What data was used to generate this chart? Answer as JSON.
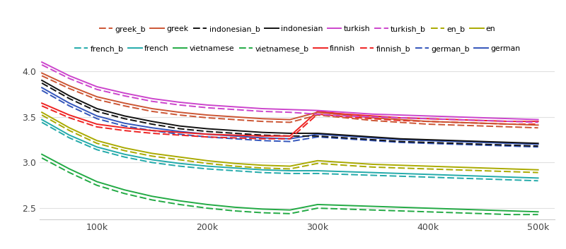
{
  "x": [
    50000,
    75000,
    100000,
    125000,
    150000,
    175000,
    200000,
    225000,
    250000,
    275000,
    300000,
    325000,
    350000,
    375000,
    400000,
    425000,
    450000,
    475000,
    500000
  ],
  "languages": {
    "turkish": {
      "color": "#cc44cc",
      "solid": [
        4.1,
        3.95,
        3.83,
        3.76,
        3.7,
        3.66,
        3.63,
        3.61,
        3.59,
        3.58,
        3.57,
        3.55,
        3.53,
        3.52,
        3.51,
        3.5,
        3.49,
        3.48,
        3.47
      ],
      "dashed": [
        4.07,
        3.92,
        3.8,
        3.73,
        3.67,
        3.63,
        3.6,
        3.58,
        3.56,
        3.55,
        3.53,
        3.51,
        3.5,
        3.49,
        3.48,
        3.47,
        3.46,
        3.45,
        3.44
      ]
    },
    "greek": {
      "color": "#cc5533",
      "solid": [
        3.98,
        3.84,
        3.72,
        3.65,
        3.59,
        3.55,
        3.52,
        3.5,
        3.48,
        3.47,
        3.55,
        3.52,
        3.49,
        3.47,
        3.45,
        3.44,
        3.43,
        3.42,
        3.41
      ],
      "dashed": [
        3.95,
        3.81,
        3.69,
        3.62,
        3.56,
        3.52,
        3.49,
        3.47,
        3.45,
        3.44,
        3.52,
        3.49,
        3.46,
        3.44,
        3.42,
        3.41,
        3.4,
        3.39,
        3.38
      ]
    },
    "finnish": {
      "color": "#ee2222",
      "solid": [
        3.65,
        3.52,
        3.42,
        3.38,
        3.35,
        3.33,
        3.31,
        3.3,
        3.29,
        3.29,
        3.56,
        3.53,
        3.51,
        3.49,
        3.48,
        3.47,
        3.46,
        3.45,
        3.45
      ],
      "dashed": [
        3.62,
        3.49,
        3.39,
        3.35,
        3.32,
        3.3,
        3.28,
        3.27,
        3.26,
        3.26,
        3.53,
        3.5,
        3.48,
        3.46,
        3.45,
        3.44,
        3.43,
        3.42,
        3.42
      ]
    },
    "indonesian": {
      "color": "#111111",
      "solid": [
        3.9,
        3.73,
        3.59,
        3.51,
        3.45,
        3.4,
        3.37,
        3.35,
        3.33,
        3.32,
        3.32,
        3.3,
        3.28,
        3.26,
        3.25,
        3.24,
        3.23,
        3.22,
        3.21
      ],
      "dashed": [
        3.87,
        3.7,
        3.56,
        3.48,
        3.42,
        3.37,
        3.34,
        3.32,
        3.3,
        3.29,
        3.29,
        3.27,
        3.25,
        3.23,
        3.22,
        3.21,
        3.2,
        3.19,
        3.18
      ]
    },
    "german": {
      "color": "#3355bb",
      "solid": [
        3.82,
        3.65,
        3.51,
        3.43,
        3.38,
        3.34,
        3.31,
        3.29,
        3.27,
        3.26,
        3.31,
        3.29,
        3.27,
        3.25,
        3.24,
        3.23,
        3.22,
        3.21,
        3.2
      ],
      "dashed": [
        3.79,
        3.62,
        3.48,
        3.4,
        3.35,
        3.31,
        3.28,
        3.26,
        3.24,
        3.23,
        3.28,
        3.26,
        3.24,
        3.22,
        3.21,
        3.2,
        3.19,
        3.18,
        3.17
      ]
    },
    "en": {
      "color": "#aaaa00",
      "solid": [
        3.55,
        3.38,
        3.24,
        3.16,
        3.1,
        3.06,
        3.02,
        2.99,
        2.97,
        2.96,
        3.02,
        3.0,
        2.98,
        2.97,
        2.96,
        2.95,
        2.94,
        2.93,
        2.92
      ],
      "dashed": [
        3.52,
        3.35,
        3.21,
        3.13,
        3.07,
        3.03,
        2.99,
        2.96,
        2.94,
        2.93,
        2.99,
        2.97,
        2.95,
        2.94,
        2.93,
        2.92,
        2.91,
        2.9,
        2.89
      ]
    },
    "french": {
      "color": "#22aaaa",
      "solid": [
        3.47,
        3.3,
        3.17,
        3.09,
        3.03,
        2.99,
        2.96,
        2.94,
        2.92,
        2.91,
        2.91,
        2.9,
        2.89,
        2.88,
        2.87,
        2.86,
        2.85,
        2.84,
        2.83
      ],
      "dashed": [
        3.44,
        3.27,
        3.14,
        3.06,
        3.0,
        2.96,
        2.93,
        2.91,
        2.89,
        2.88,
        2.88,
        2.87,
        2.86,
        2.85,
        2.84,
        2.83,
        2.82,
        2.81,
        2.8
      ]
    },
    "vietnamese": {
      "color": "#22aa44",
      "solid": [
        3.09,
        2.93,
        2.79,
        2.7,
        2.63,
        2.58,
        2.54,
        2.51,
        2.49,
        2.48,
        2.54,
        2.53,
        2.52,
        2.51,
        2.5,
        2.49,
        2.48,
        2.47,
        2.46
      ],
      "dashed": [
        3.05,
        2.89,
        2.75,
        2.66,
        2.59,
        2.54,
        2.5,
        2.47,
        2.45,
        2.44,
        2.5,
        2.49,
        2.48,
        2.47,
        2.46,
        2.45,
        2.44,
        2.43,
        2.43
      ]
    }
  },
  "legend_row1": [
    {
      "name": "greek_b",
      "color": "#cc5533",
      "ls": "dashed"
    },
    {
      "name": "greek",
      "color": "#cc5533",
      "ls": "solid"
    },
    {
      "name": "indonesian_b",
      "color": "#111111",
      "ls": "dashed"
    },
    {
      "name": "indonesian",
      "color": "#111111",
      "ls": "solid"
    },
    {
      "name": "turkish",
      "color": "#cc44cc",
      "ls": "solid"
    },
    {
      "name": "turkish_b",
      "color": "#cc44cc",
      "ls": "dashed"
    },
    {
      "name": "en_b",
      "color": "#aaaa00",
      "ls": "dashed"
    },
    {
      "name": "en",
      "color": "#aaaa00",
      "ls": "solid"
    }
  ],
  "legend_row2": [
    {
      "name": "french_b",
      "color": "#22aaaa",
      "ls": "dashed"
    },
    {
      "name": "french",
      "color": "#22aaaa",
      "ls": "solid"
    },
    {
      "name": "vietnamese",
      "color": "#22aa44",
      "ls": "solid"
    },
    {
      "name": "vietnamese_b",
      "color": "#22aa44",
      "ls": "dashed"
    },
    {
      "name": "finnish",
      "color": "#ee2222",
      "ls": "solid"
    },
    {
      "name": "finnish_b",
      "color": "#ee2222",
      "ls": "dashed"
    },
    {
      "name": "german_b",
      "color": "#3355bb",
      "ls": "dashed"
    },
    {
      "name": "german",
      "color": "#3355bb",
      "ls": "solid"
    }
  ],
  "ylim": [
    2.38,
    4.18
  ],
  "yticks": [
    2.5,
    3.0,
    3.5,
    4.0
  ],
  "xticks": [
    100000,
    200000,
    300000,
    400000,
    500000
  ],
  "xticklabels": [
    "100k",
    "200k",
    "300k",
    "400k",
    "500k"
  ],
  "xlim": [
    48000,
    515000
  ],
  "grid_color": "#e0e0e0"
}
